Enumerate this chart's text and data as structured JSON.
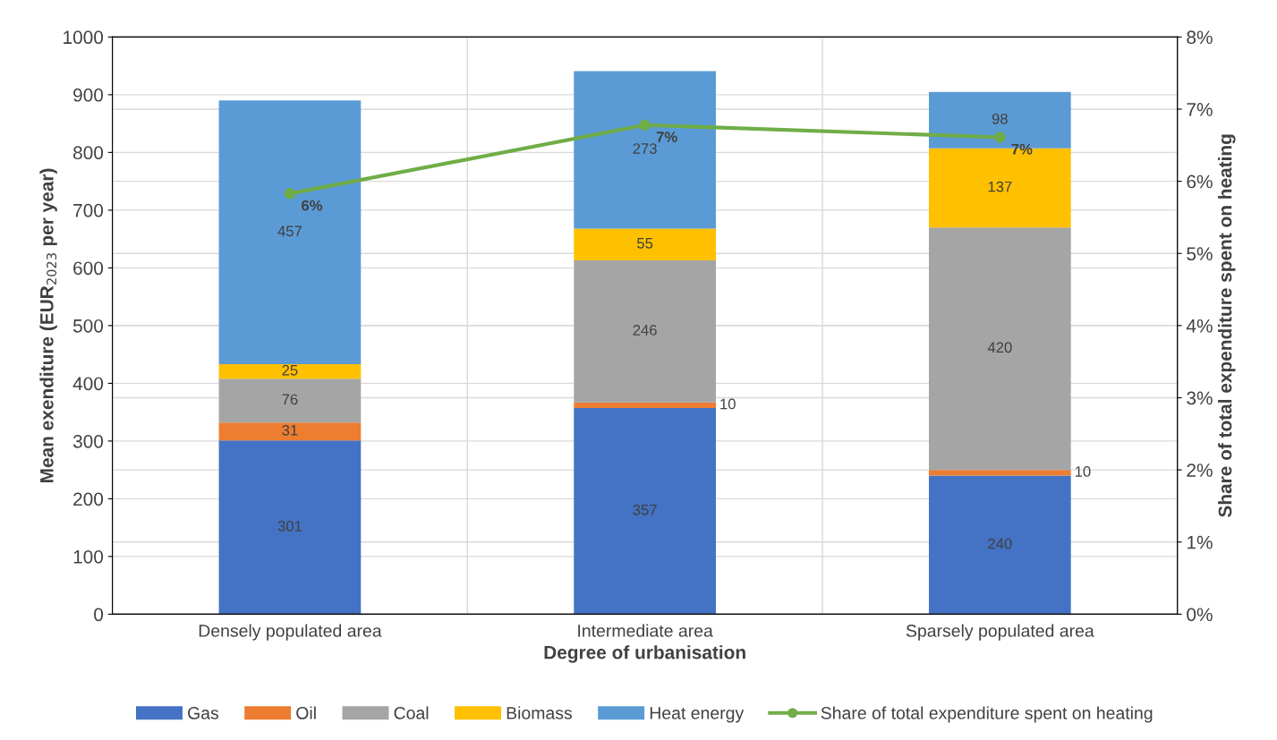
{
  "chart_data": {
    "type": "bar",
    "stacked": true,
    "xlabel": "Degree of urbanisation",
    "ylabel": "Mean exenditure (EUR$_{2023}$ per year)",
    "y2label": "Share of total expenditure spent on heating",
    "categories": [
      "Densely populated area",
      "Intermediate area",
      "Sparsely populated area"
    ],
    "series": [
      {
        "name": "Gas",
        "color": "#4472c4",
        "values": [
          301,
          357,
          240
        ],
        "data_labels": true
      },
      {
        "name": "Oil",
        "color": "#ed7d31",
        "values": [
          31,
          10,
          10
        ],
        "data_labels": true
      },
      {
        "name": "Coal",
        "color": "#a5a5a5",
        "values": [
          76,
          246,
          420
        ],
        "data_labels": true
      },
      {
        "name": "Biomass",
        "color": "#ffc000",
        "values": [
          25,
          55,
          137
        ],
        "data_labels": true
      },
      {
        "name": "Heat energy",
        "color": "#5b9bd5",
        "values": [
          457,
          273,
          98
        ],
        "data_labels": true
      },
      {
        "name": "Share of total expenditure spent on heating",
        "type": "line",
        "axis": "y2",
        "color": "#70ad47",
        "marker": "circle",
        "values": [
          5.83,
          6.78,
          6.61
        ],
        "value_labels": [
          "6%",
          "7%",
          "7%"
        ]
      }
    ],
    "ylim": [
      0,
      1000
    ],
    "yticks": [
      0,
      100,
      200,
      300,
      400,
      500,
      600,
      700,
      800,
      900,
      1000
    ],
    "y2lim": [
      0,
      8
    ],
    "y2ticks": [
      {
        "value": 0,
        "label": "0%"
      },
      {
        "value": 1,
        "label": "1%"
      },
      {
        "value": 2,
        "label": "2%"
      },
      {
        "value": 3,
        "label": "3%"
      },
      {
        "value": 4,
        "label": "4%"
      },
      {
        "value": 5,
        "label": "5%"
      },
      {
        "value": 6,
        "label": "6%"
      },
      {
        "value": 7,
        "label": "7%"
      },
      {
        "value": 8,
        "label": "8%"
      }
    ],
    "grid": true,
    "legend": "bottom"
  }
}
